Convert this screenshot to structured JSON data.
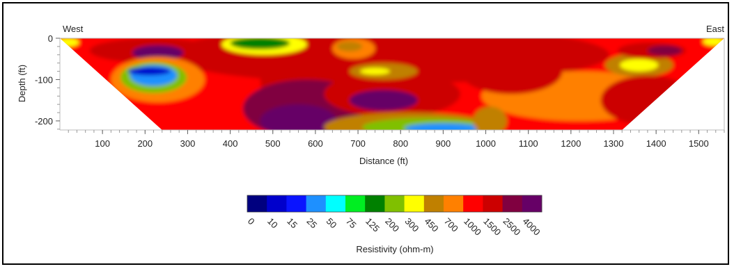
{
  "chart_data": {
    "type": "heatmap",
    "title": "",
    "xlabel": "Distance (ft)",
    "ylabel": "Depth (ft)",
    "xlim": [
      0,
      1560
    ],
    "ylim": [
      -222,
      0
    ],
    "x_ticks": [
      "100",
      "200",
      "300",
      "400",
      "500",
      "600",
      "700",
      "800",
      "900",
      "1000",
      "1100",
      "1200",
      "1300",
      "1400",
      "1500"
    ],
    "x_tick_values": [
      100,
      200,
      300,
      400,
      500,
      600,
      700,
      800,
      900,
      1000,
      1100,
      1200,
      1300,
      1400,
      1500
    ],
    "y_ticks": [
      "0",
      "-100",
      "-200"
    ],
    "y_tick_values": [
      0,
      -100,
      -200
    ],
    "annotations": {
      "left": "West",
      "right": "East"
    },
    "section_outline_ft": [
      [
        0,
        0
      ],
      [
        1560,
        0
      ],
      [
        1320,
        -222
      ],
      [
        240,
        -222
      ]
    ],
    "background_value_ohm_m": 1000,
    "anomalies": [
      {
        "x": 770,
        "y": -40,
        "rx": 520,
        "ry": 70,
        "value": 1500
      },
      {
        "x": 1220,
        "y": -140,
        "rx": 230,
        "ry": 60,
        "value": 700
      },
      {
        "x": 560,
        "y": -80,
        "rx": 90,
        "ry": 170,
        "value": 1500
      },
      {
        "x": 580,
        "y": -170,
        "rx": 150,
        "ry": 70,
        "value": 2500
      },
      {
        "x": 560,
        "y": -200,
        "rx": 90,
        "ry": 40,
        "value": 4000
      },
      {
        "x": 220,
        "y": -30,
        "rx": 150,
        "ry": 30,
        "value": 1500
      },
      {
        "x": 230,
        "y": -35,
        "rx": 60,
        "ry": 18,
        "value": 4000
      },
      {
        "x": 230,
        "y": -100,
        "rx": 110,
        "ry": 55,
        "value": 700
      },
      {
        "x": 220,
        "y": -95,
        "rx": 78,
        "ry": 38,
        "value": 200
      },
      {
        "x": 220,
        "y": -90,
        "rx": 55,
        "ry": 25,
        "value": 25
      },
      {
        "x": 210,
        "y": -80,
        "rx": 50,
        "ry": 10,
        "value": 10
      },
      {
        "x": 480,
        "y": -15,
        "rx": 100,
        "ry": 25,
        "value": 300
      },
      {
        "x": 470,
        "y": -12,
        "rx": 70,
        "ry": 15,
        "value": 125
      },
      {
        "x": 780,
        "y": -135,
        "rx": 160,
        "ry": 55,
        "value": 1500
      },
      {
        "x": 760,
        "y": -150,
        "rx": 80,
        "ry": 25,
        "value": 4000
      },
      {
        "x": 760,
        "y": -80,
        "rx": 80,
        "ry": 20,
        "value": 450
      },
      {
        "x": 740,
        "y": -80,
        "rx": 35,
        "ry": 8,
        "value": 300
      },
      {
        "x": 820,
        "y": -215,
        "rx": 200,
        "ry": 35,
        "value": 450
      },
      {
        "x": 860,
        "y": -215,
        "rx": 150,
        "ry": 22,
        "value": 200
      },
      {
        "x": 900,
        "y": -218,
        "rx": 90,
        "ry": 12,
        "value": 25
      },
      {
        "x": 1010,
        "y": -200,
        "rx": 40,
        "ry": 35,
        "value": 450
      },
      {
        "x": 1060,
        "y": -80,
        "rx": 120,
        "ry": 55,
        "value": 1500
      },
      {
        "x": 1360,
        "y": -65,
        "rx": 80,
        "ry": 28,
        "value": 450
      },
      {
        "x": 1360,
        "y": -65,
        "rx": 45,
        "ry": 15,
        "value": 300
      },
      {
        "x": 1380,
        "y": -150,
        "rx": 110,
        "ry": 60,
        "value": 1500
      },
      {
        "x": 1390,
        "y": -30,
        "rx": 80,
        "ry": 20,
        "value": 1500
      },
      {
        "x": 1420,
        "y": -30,
        "rx": 40,
        "ry": 12,
        "value": 2500
      },
      {
        "x": 690,
        "y": -25,
        "rx": 50,
        "ry": 25,
        "value": 700
      },
      {
        "x": 680,
        "y": -20,
        "rx": 30,
        "ry": 12,
        "value": 450
      },
      {
        "x": 20,
        "y": -10,
        "rx": 25,
        "ry": 10,
        "value": 300
      },
      {
        "x": 1535,
        "y": -8,
        "rx": 25,
        "ry": 10,
        "value": 300
      }
    ],
    "colorbar": {
      "label": "Resistivity (ohm-m)",
      "tick_labels": [
        "0",
        "10",
        "15",
        "25",
        "50",
        "75",
        "125",
        "200",
        "300",
        "450",
        "700",
        "1000",
        "1500",
        "2500",
        "4000"
      ],
      "boundaries": [
        0,
        10,
        15,
        25,
        50,
        75,
        125,
        200,
        300,
        450,
        700,
        1000,
        1500,
        2500,
        4000
      ],
      "colors": [
        "#00007f",
        "#0000cc",
        "#0a14ff",
        "#1e90ff",
        "#00ffff",
        "#00ee22",
        "#008000",
        "#80c000",
        "#ffff00",
        "#c08000",
        "#ff8000",
        "#ff0000",
        "#cc0000",
        "#800040",
        "#660066"
      ]
    }
  }
}
